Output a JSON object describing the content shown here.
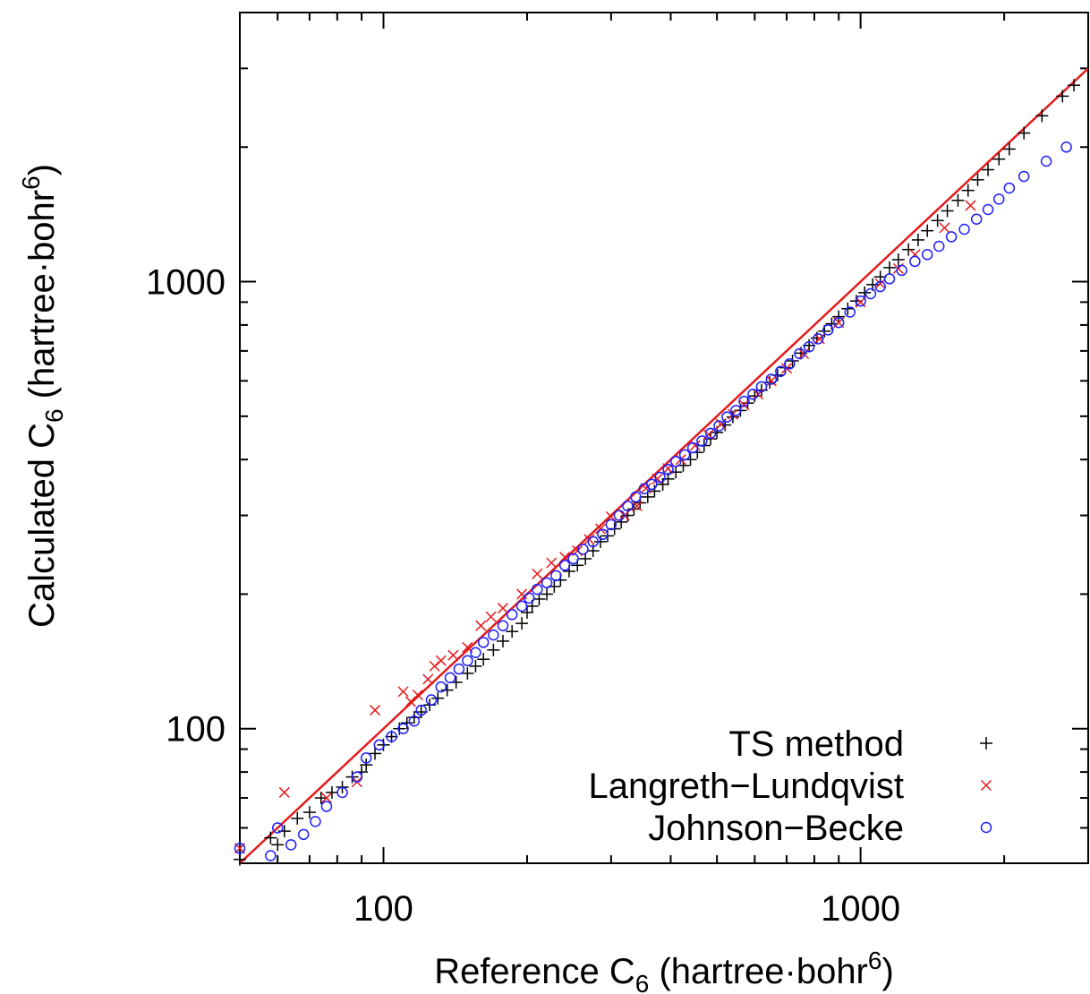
{
  "chart_data": {
    "type": "scatter",
    "x_scale": "log",
    "y_scale": "log",
    "xlim": [
      50,
      3000
    ],
    "ylim": [
      50,
      4000
    ],
    "xlabel": {
      "main": "Reference C",
      "sub": "6",
      "unit_open": " (hartree·bohr",
      "sup": "6",
      "unit_close": ")"
    },
    "ylabel": {
      "main": "Calculated C",
      "sub": "6",
      "unit_open": " (hartree·bohr",
      "sup": "6",
      "unit_close": ")"
    },
    "x_ticks": [
      {
        "value": 100,
        "label": "100"
      },
      {
        "value": 1000,
        "label": "1000"
      }
    ],
    "y_ticks": [
      {
        "value": 100,
        "label": "100"
      },
      {
        "value": 1000,
        "label": "1000"
      }
    ],
    "grid": false,
    "legend_position": "bottom-right",
    "reference_line": {
      "slope": 1,
      "color": "#e41a1c"
    },
    "series": [
      {
        "name": "TS method",
        "marker": "plus",
        "color": "#000000",
        "points": [
          [
            50,
            51
          ],
          [
            58,
            57
          ],
          [
            60,
            55
          ],
          [
            62,
            59
          ],
          [
            66,
            63
          ],
          [
            70,
            65
          ],
          [
            74,
            70
          ],
          [
            78,
            72
          ],
          [
            82,
            74
          ],
          [
            86,
            78
          ],
          [
            90,
            80
          ],
          [
            92,
            83
          ],
          [
            96,
            88
          ],
          [
            100,
            92
          ],
          [
            104,
            96
          ],
          [
            108,
            100
          ],
          [
            112,
            103
          ],
          [
            116,
            106
          ],
          [
            120,
            109
          ],
          [
            125,
            113
          ],
          [
            130,
            117
          ],
          [
            136,
            122
          ],
          [
            142,
            127
          ],
          [
            150,
            133
          ],
          [
            156,
            138
          ],
          [
            162,
            143
          ],
          [
            170,
            150
          ],
          [
            178,
            157
          ],
          [
            186,
            165
          ],
          [
            195,
            172
          ],
          [
            200,
            182
          ],
          [
            205,
            188
          ],
          [
            212,
            195
          ],
          [
            220,
            200
          ],
          [
            228,
            208
          ],
          [
            235,
            215
          ],
          [
            245,
            225
          ],
          [
            255,
            232
          ],
          [
            265,
            240
          ],
          [
            275,
            250
          ],
          [
            285,
            262
          ],
          [
            295,
            270
          ],
          [
            305,
            280
          ],
          [
            315,
            290
          ],
          [
            325,
            300
          ],
          [
            335,
            310
          ],
          [
            345,
            320
          ],
          [
            358,
            330
          ],
          [
            370,
            340
          ],
          [
            385,
            352
          ],
          [
            395,
            362
          ],
          [
            410,
            375
          ],
          [
            425,
            388
          ],
          [
            440,
            400
          ],
          [
            455,
            415
          ],
          [
            470,
            430
          ],
          [
            485,
            445
          ],
          [
            500,
            460
          ],
          [
            520,
            478
          ],
          [
            540,
            498
          ],
          [
            560,
            515
          ],
          [
            580,
            535
          ],
          [
            600,
            555
          ],
          [
            620,
            572
          ],
          [
            645,
            595
          ],
          [
            670,
            618
          ],
          [
            695,
            642
          ],
          [
            720,
            665
          ],
          [
            750,
            692
          ],
          [
            780,
            720
          ],
          [
            810,
            748
          ],
          [
            840,
            775
          ],
          [
            870,
            805
          ],
          [
            900,
            835
          ],
          [
            940,
            870
          ],
          [
            980,
            905
          ],
          [
            1020,
            945
          ],
          [
            1060,
            985
          ],
          [
            1100,
            1025
          ],
          [
            1150,
            1075
          ],
          [
            1200,
            1120
          ],
          [
            1260,
            1180
          ],
          [
            1320,
            1240
          ],
          [
            1380,
            1300
          ],
          [
            1450,
            1370
          ],
          [
            1520,
            1440
          ],
          [
            1600,
            1520
          ],
          [
            1680,
            1600
          ],
          [
            1760,
            1690
          ],
          [
            1850,
            1780
          ],
          [
            1950,
            1880
          ],
          [
            2050,
            1980
          ],
          [
            2200,
            2150
          ],
          [
            2400,
            2350
          ],
          [
            2650,
            2600
          ],
          [
            2800,
            2750
          ]
        ]
      },
      {
        "name": "Langreth-Lundqvist",
        "marker": "cross",
        "color": "#e41a1c",
        "points": [
          [
            50,
            54
          ],
          [
            62,
            72
          ],
          [
            76,
            70
          ],
          [
            88,
            76
          ],
          [
            96,
            110
          ],
          [
            110,
            121
          ],
          [
            114,
            115
          ],
          [
            118,
            119
          ],
          [
            124,
            129
          ],
          [
            128,
            138
          ],
          [
            132,
            142
          ],
          [
            140,
            146
          ],
          [
            150,
            152
          ],
          [
            160,
            170
          ],
          [
            168,
            178
          ],
          [
            178,
            186
          ],
          [
            195,
            200
          ],
          [
            210,
            222
          ],
          [
            225,
            235
          ],
          [
            240,
            242
          ],
          [
            255,
            250
          ],
          [
            270,
            265
          ],
          [
            285,
            280
          ],
          [
            300,
            298
          ],
          [
            320,
            300
          ],
          [
            340,
            315
          ],
          [
            355,
            345
          ],
          [
            375,
            362
          ],
          [
            395,
            382
          ],
          [
            420,
            400
          ],
          [
            450,
            430
          ],
          [
            480,
            455
          ],
          [
            510,
            480
          ],
          [
            540,
            505
          ],
          [
            570,
            530
          ],
          [
            610,
            560
          ],
          [
            650,
            600
          ],
          [
            700,
            640
          ],
          [
            760,
            690
          ],
          [
            820,
            745
          ],
          [
            900,
            810
          ],
          [
            1000,
            900
          ],
          [
            1100,
            990
          ],
          [
            1200,
            1070
          ],
          [
            1300,
            1150
          ],
          [
            1500,
            1320
          ],
          [
            1700,
            1480
          ]
        ]
      },
      {
        "name": "Johnson-Becke",
        "marker": "circle",
        "color": "#1f1fff",
        "points": [
          [
            50,
            54
          ],
          [
            58,
            52
          ],
          [
            60,
            60
          ],
          [
            64,
            55
          ],
          [
            68,
            58
          ],
          [
            72,
            62
          ],
          [
            76,
            67
          ],
          [
            82,
            72
          ],
          [
            88,
            78
          ],
          [
            92,
            86
          ],
          [
            98,
            92
          ],
          [
            104,
            96
          ],
          [
            110,
            100
          ],
          [
            116,
            104
          ],
          [
            120,
            110
          ],
          [
            126,
            116
          ],
          [
            132,
            124
          ],
          [
            138,
            130
          ],
          [
            144,
            136
          ],
          [
            150,
            142
          ],
          [
            156,
            148
          ],
          [
            162,
            156
          ],
          [
            170,
            162
          ],
          [
            178,
            170
          ],
          [
            186,
            180
          ],
          [
            195,
            188
          ],
          [
            202,
            196
          ],
          [
            210,
            205
          ],
          [
            220,
            212
          ],
          [
            230,
            220
          ],
          [
            240,
            232
          ],
          [
            250,
            240
          ],
          [
            262,
            252
          ],
          [
            275,
            262
          ],
          [
            288,
            272
          ],
          [
            300,
            286
          ],
          [
            312,
            300
          ],
          [
            325,
            315
          ],
          [
            338,
            330
          ],
          [
            352,
            344
          ],
          [
            365,
            352
          ],
          [
            380,
            365
          ],
          [
            395,
            380
          ],
          [
            410,
            396
          ],
          [
            428,
            410
          ],
          [
            445,
            425
          ],
          [
            465,
            440
          ],
          [
            485,
            458
          ],
          [
            505,
            476
          ],
          [
            525,
            498
          ],
          [
            548,
            515
          ],
          [
            570,
            540
          ],
          [
            595,
            560
          ],
          [
            620,
            582
          ],
          [
            650,
            605
          ],
          [
            680,
            630
          ],
          [
            710,
            655
          ],
          [
            745,
            690
          ],
          [
            780,
            715
          ],
          [
            815,
            745
          ],
          [
            855,
            780
          ],
          [
            900,
            810
          ],
          [
            950,
            855
          ],
          [
            1000,
            905
          ],
          [
            1050,
            940
          ],
          [
            1100,
            975
          ],
          [
            1150,
            1015
          ],
          [
            1220,
            1060
          ],
          [
            1300,
            1110
          ],
          [
            1380,
            1150
          ],
          [
            1460,
            1200
          ],
          [
            1550,
            1260
          ],
          [
            1650,
            1310
          ],
          [
            1750,
            1380
          ],
          [
            1850,
            1450
          ],
          [
            1950,
            1530
          ],
          [
            2050,
            1620
          ],
          [
            2200,
            1720
          ],
          [
            2450,
            1860
          ],
          [
            2700,
            2000
          ]
        ]
      }
    ]
  }
}
